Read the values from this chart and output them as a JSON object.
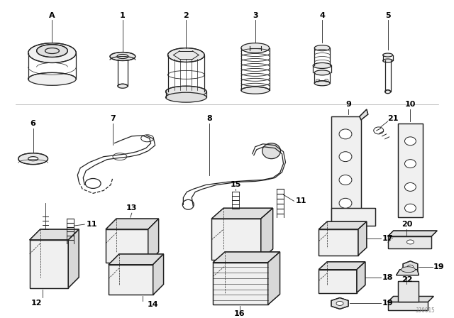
{
  "background_color": "#ffffff",
  "line_color": "#222222",
  "label_color": "#000000",
  "watermark": "JJ0015",
  "fig_width": 6.4,
  "fig_height": 4.48,
  "dpi": 100,
  "label_fontsize": 8,
  "lw": 0.9
}
